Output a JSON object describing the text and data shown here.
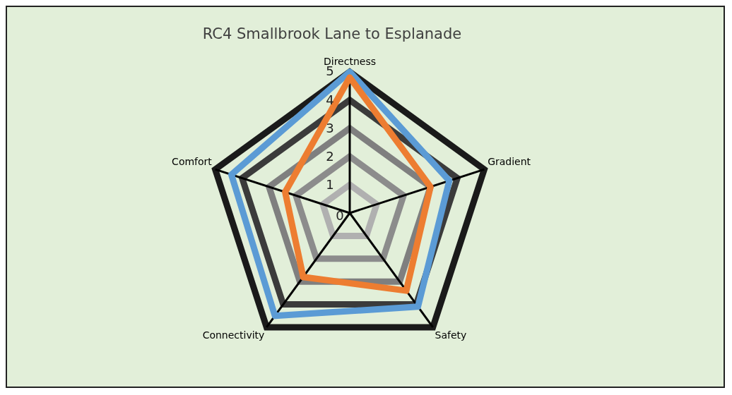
{
  "chart_data": {
    "type": "radar",
    "title": "RC4 Smallbrook Lane to Esplanade",
    "categories": [
      "Directness",
      "Gradient",
      "Safety",
      "Connectivity",
      "Comfort"
    ],
    "series": [
      {
        "color": "#ed7d31",
        "values": [
          4.8,
          3.0,
          3.4,
          2.8,
          2.4
        ]
      },
      {
        "color": "#5b9bd5",
        "values": [
          5,
          3.7,
          4.1,
          4.5,
          4.4
        ]
      }
    ],
    "ylim": [
      0,
      5
    ],
    "yticks": [
      0,
      1,
      2,
      3,
      4,
      5
    ],
    "grid": true,
    "legend": false,
    "marker": "none"
  }
}
